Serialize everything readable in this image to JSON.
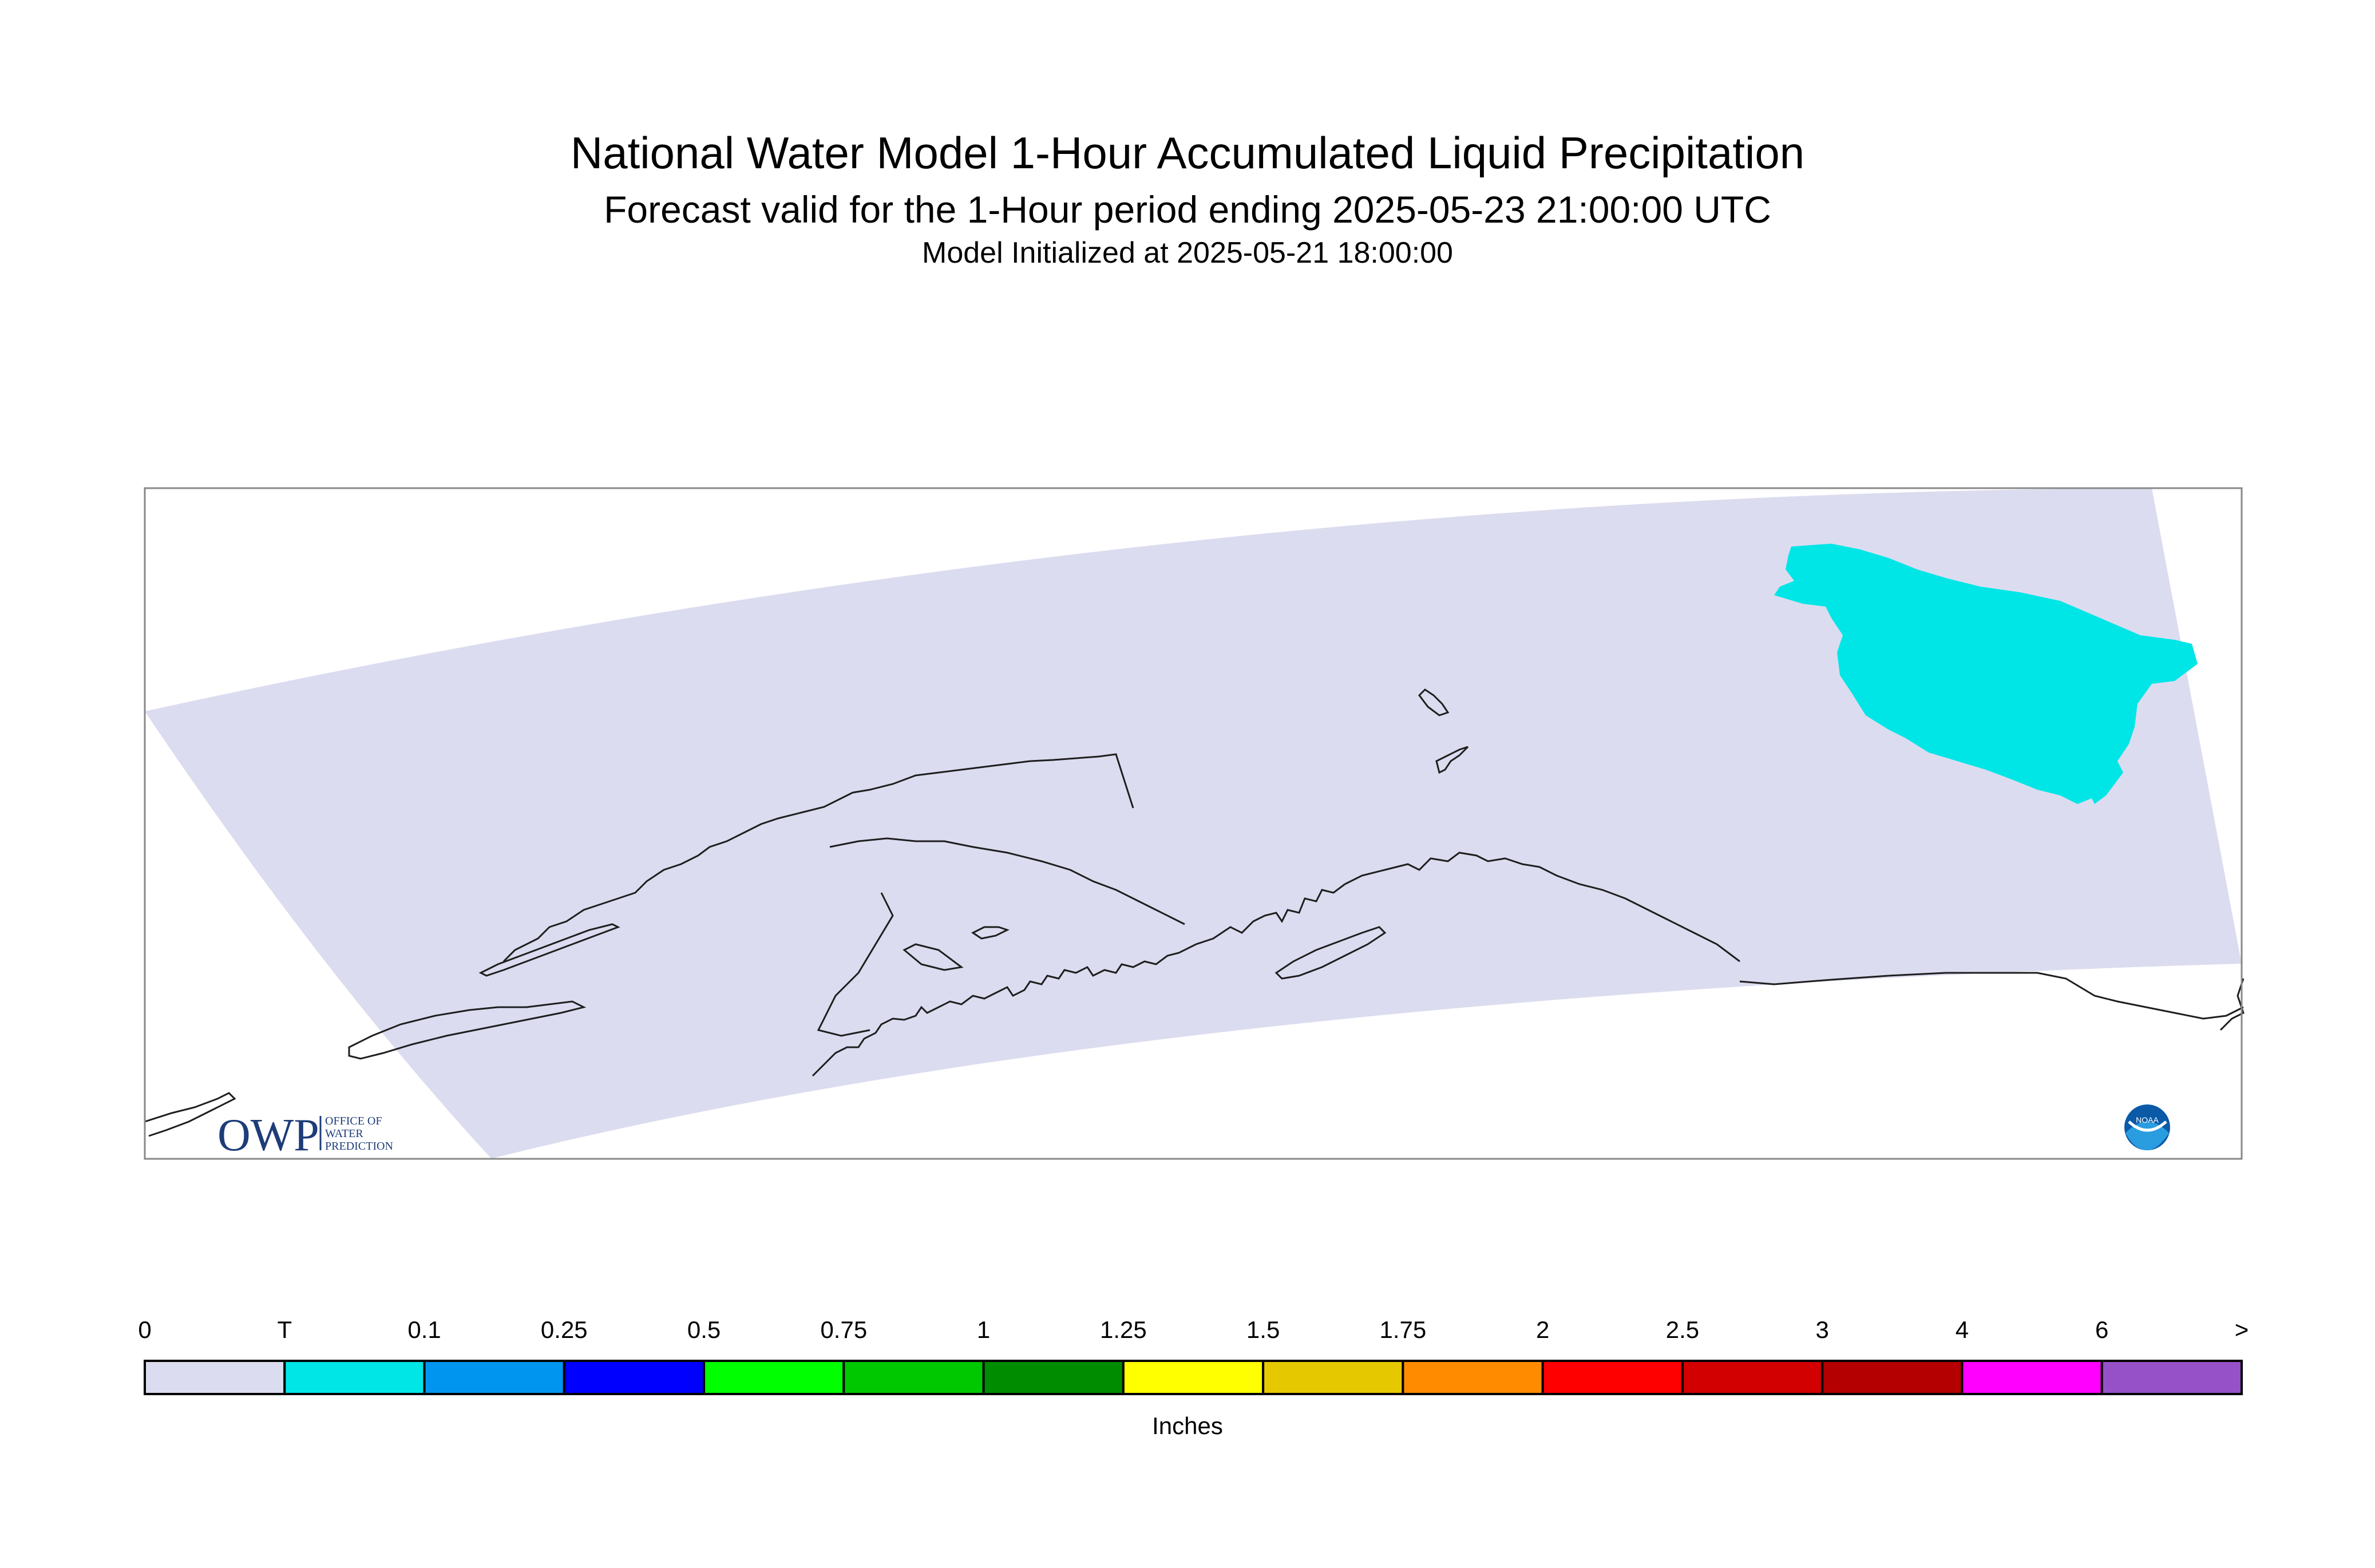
{
  "header": {
    "title": "National Water Model 1-Hour Accumulated Liquid Precipitation",
    "subtitle": "Forecast valid for the 1-Hour period ending 2025-05-23 21:00:00 UTC",
    "init": "Model Initialized at 2025-05-21 18:00:00"
  },
  "logos": {
    "owp_text": "OWP",
    "owp_sub": [
      "OFFICE OF",
      "WATER",
      "PREDICTION"
    ],
    "noaa_text": "NOAA"
  },
  "legend": {
    "units": "Inches",
    "labels": [
      "0",
      "T",
      "0.1",
      "0.25",
      "0.5",
      "0.75",
      "1",
      "1.25",
      "1.5",
      "1.75",
      "2",
      "2.5",
      "3",
      "4",
      "6",
      ">"
    ],
    "colors": [
      "#dcdcf0",
      "#00e6e6",
      "#0096f0",
      "#0000ff",
      "#00ff00",
      "#00c800",
      "#008c00",
      "#ffff00",
      "#e6c800",
      "#ff8c00",
      "#ff0000",
      "#d20000",
      "#b40000",
      "#ff00ff",
      "#9650c8"
    ]
  },
  "map": {
    "domain_color": "#dcdcf0",
    "precip_color": "#00e6e6",
    "coast_color": "#1e1e1e"
  }
}
